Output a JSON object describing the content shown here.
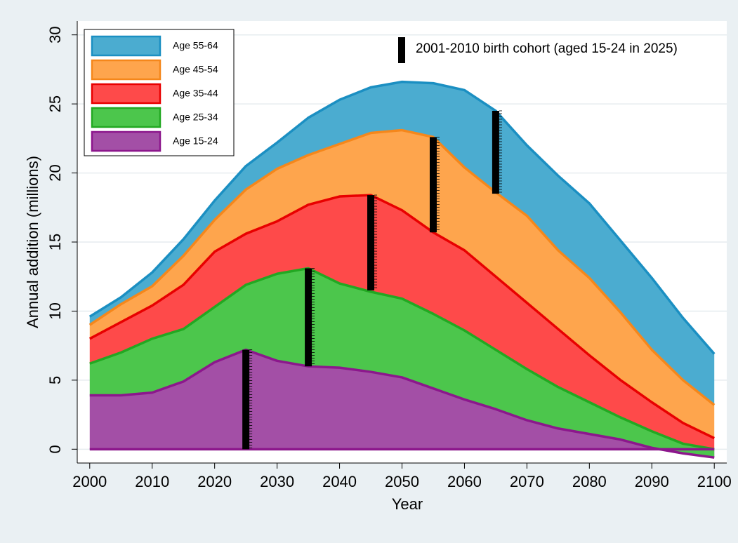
{
  "chart_data": {
    "type": "stacked-area",
    "x_label": "Year",
    "y_label": "Annual addition (millions)",
    "x": [
      2000,
      2005,
      2010,
      2015,
      2020,
      2025,
      2030,
      2035,
      2040,
      2045,
      2050,
      2055,
      2060,
      2065,
      2070,
      2075,
      2080,
      2085,
      2090,
      2095,
      2100
    ],
    "xlim": [
      1998,
      2102
    ],
    "xticks": [
      2000,
      2010,
      2020,
      2030,
      2040,
      2050,
      2060,
      2070,
      2080,
      2090,
      2100
    ],
    "ylim": [
      -1,
      31
    ],
    "yticks": [
      0,
      5,
      10,
      15,
      20,
      25,
      30
    ],
    "grid": true,
    "legend": "top-left",
    "series": [
      {
        "name": "Age 15-24",
        "color": "#a34fa6",
        "line_color": "#8c178c",
        "values": [
          3.9,
          3.9,
          4.1,
          4.9,
          6.3,
          7.2,
          6.4,
          6.0,
          5.9,
          5.6,
          5.2,
          4.4,
          3.6,
          2.9,
          2.1,
          1.5,
          1.1,
          0.7,
          0.1,
          -0.3,
          -0.6
        ]
      },
      {
        "name": "Age 25-34",
        "color": "#4cc64c",
        "line_color": "#22a822",
        "values": [
          2.3,
          3.1,
          3.9,
          3.8,
          4.0,
          4.7,
          6.3,
          7.1,
          6.1,
          5.8,
          5.7,
          5.4,
          5.0,
          4.3,
          3.7,
          3.0,
          2.3,
          1.6,
          1.2,
          0.7,
          0.6
        ]
      },
      {
        "name": "Age 35-44",
        "color": "#fe4a4a",
        "line_color": "#e80000",
        "values": [
          1.8,
          2.2,
          2.4,
          3.2,
          4.0,
          3.7,
          3.8,
          4.6,
          6.3,
          7.0,
          6.4,
          5.9,
          5.8,
          5.3,
          4.8,
          4.2,
          3.4,
          2.7,
          2.1,
          1.5,
          0.8
        ]
      },
      {
        "name": "Age 45-54",
        "color": "#fea54d",
        "line_color": "#f5871b",
        "values": [
          1.0,
          1.3,
          1.4,
          2.1,
          2.3,
          3.2,
          3.8,
          3.6,
          3.8,
          4.5,
          5.8,
          6.9,
          6.0,
          6.1,
          6.3,
          5.7,
          5.6,
          4.9,
          3.8,
          3.1,
          2.4
        ]
      },
      {
        "name": "Age 55-64",
        "color": "#4bacd0",
        "line_color": "#1b8fc2",
        "values": [
          0.6,
          0.5,
          1.0,
          1.2,
          1.4,
          1.7,
          1.9,
          2.7,
          3.2,
          3.3,
          3.5,
          3.9,
          5.6,
          5.9,
          5.1,
          5.4,
          5.4,
          5.2,
          5.2,
          4.5,
          3.7
        ]
      }
    ],
    "cohort": {
      "name": "2001-2010 birth cohort (aged 15-24 in 2025)",
      "color": "#000000",
      "x": [
        2025,
        2035,
        2045,
        2055,
        2065
      ],
      "low": [
        0,
        6.0,
        11.5,
        15.7,
        18.5
      ],
      "high": [
        7.2,
        13.1,
        18.4,
        22.6,
        24.5
      ]
    }
  }
}
